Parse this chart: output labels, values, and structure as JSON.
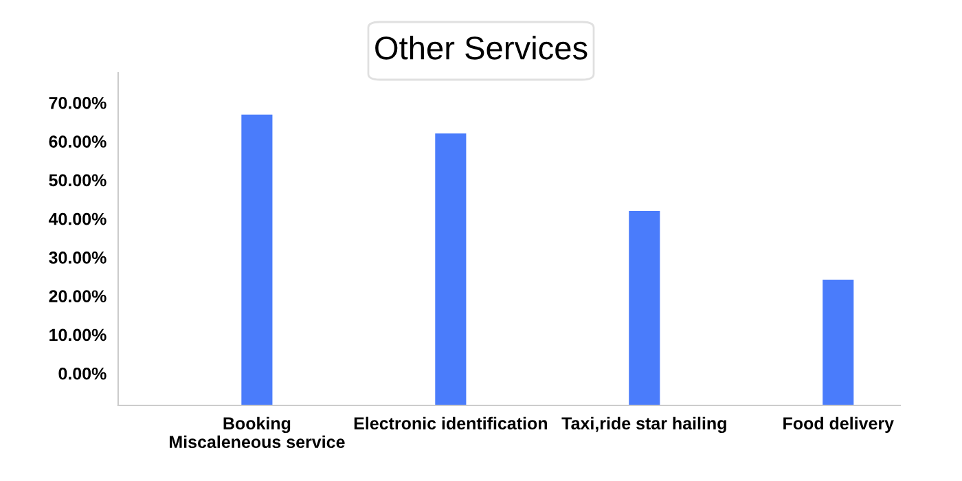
{
  "chart_data": {
    "type": "bar",
    "title": "Other Services",
    "categories": [
      "Booking\nMiscaleneous service",
      "Electronic identification",
      "Taxi,ride star hailing",
      "Food delivery"
    ],
    "base": [
      -8.3,
      -8.3,
      -8.3,
      -8.3
    ],
    "values": [
      75.2,
      70.3,
      50.3,
      32.5
    ],
    "color": "#4a7cfb",
    "ylim": [
      -8.3,
      77.7
    ],
    "yticks": [
      {
        "value": 0,
        "label": "0.00%"
      },
      {
        "value": 10,
        "label": "10.00%"
      },
      {
        "value": 20,
        "label": "20.00%"
      },
      {
        "value": 30,
        "label": "30.00%"
      },
      {
        "value": 40,
        "label": "40.00%"
      },
      {
        "value": 50,
        "label": "50.00%"
      },
      {
        "value": 60,
        "label": "60.00%"
      },
      {
        "value": 70,
        "label": "70.00%"
      }
    ],
    "grid": false,
    "legend": false
  }
}
